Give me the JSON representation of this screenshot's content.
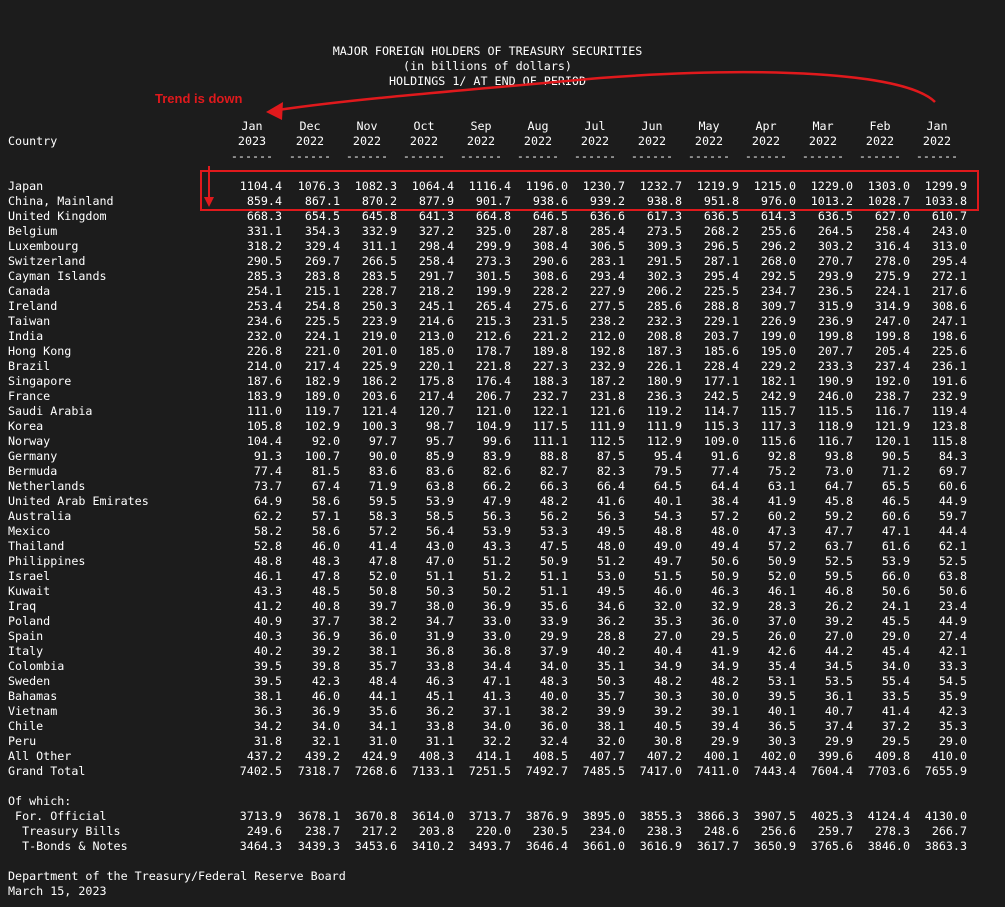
{
  "title": {
    "line1": "MAJOR FOREIGN HOLDERS OF TREASURY SECURITIES",
    "line2": "(in billions of dollars)",
    "line3": "HOLDINGS 1/ AT END OF PERIOD"
  },
  "annotation": {
    "text": "Trend is down",
    "color": "#e0191c"
  },
  "header": {
    "country_label": "Country",
    "months": [
      "Jan",
      "Dec",
      "Nov",
      "Oct",
      "Sep",
      "Aug",
      "Jul",
      "Jun",
      "May",
      "Apr",
      "Mar",
      "Feb",
      "Jan"
    ],
    "years": [
      "2023",
      "2022",
      "2022",
      "2022",
      "2022",
      "2022",
      "2022",
      "2022",
      "2022",
      "2022",
      "2022",
      "2022",
      "2022"
    ],
    "separator": "------"
  },
  "rows": [
    {
      "country": "Japan",
      "values": [
        "1104.4",
        "1076.3",
        "1082.3",
        "1064.4",
        "1116.4",
        "1196.0",
        "1230.7",
        "1232.7",
        "1219.9",
        "1215.0",
        "1229.0",
        "1303.0",
        "1299.9"
      ]
    },
    {
      "country": "China, Mainland",
      "values": [
        "859.4",
        "867.1",
        "870.2",
        "877.9",
        "901.7",
        "938.6",
        "939.2",
        "938.8",
        "951.8",
        "976.0",
        "1013.2",
        "1028.7",
        "1033.8"
      ]
    },
    {
      "country": "United Kingdom",
      "values": [
        "668.3",
        "654.5",
        "645.8",
        "641.3",
        "664.8",
        "646.5",
        "636.6",
        "617.3",
        "636.5",
        "614.3",
        "636.5",
        "627.0",
        "610.7"
      ]
    },
    {
      "country": "Belgium",
      "values": [
        "331.1",
        "354.3",
        "332.9",
        "327.2",
        "325.0",
        "287.8",
        "285.4",
        "273.5",
        "268.2",
        "255.6",
        "264.5",
        "258.4",
        "243.0"
      ]
    },
    {
      "country": "Luxembourg",
      "values": [
        "318.2",
        "329.4",
        "311.1",
        "298.4",
        "299.9",
        "308.4",
        "306.5",
        "309.3",
        "296.5",
        "296.2",
        "303.2",
        "316.4",
        "313.0"
      ]
    },
    {
      "country": "Switzerland",
      "values": [
        "290.5",
        "269.7",
        "266.5",
        "258.4",
        "273.3",
        "290.6",
        "283.1",
        "291.5",
        "287.1",
        "268.0",
        "270.7",
        "278.0",
        "295.4"
      ]
    },
    {
      "country": "Cayman Islands",
      "values": [
        "285.3",
        "283.8",
        "283.5",
        "291.7",
        "301.5",
        "308.6",
        "293.4",
        "302.3",
        "295.4",
        "292.5",
        "293.9",
        "275.9",
        "272.1"
      ]
    },
    {
      "country": "Canada",
      "values": [
        "254.1",
        "215.1",
        "228.7",
        "218.2",
        "199.9",
        "228.2",
        "227.9",
        "206.2",
        "225.5",
        "234.7",
        "236.5",
        "224.1",
        "217.6"
      ]
    },
    {
      "country": "Ireland",
      "values": [
        "253.4",
        "254.8",
        "250.3",
        "245.1",
        "265.4",
        "275.6",
        "277.5",
        "285.6",
        "288.8",
        "309.7",
        "315.9",
        "314.9",
        "308.6"
      ]
    },
    {
      "country": "Taiwan",
      "values": [
        "234.6",
        "225.5",
        "223.9",
        "214.6",
        "215.3",
        "231.5",
        "238.2",
        "232.3",
        "229.1",
        "226.9",
        "236.9",
        "247.0",
        "247.1"
      ]
    },
    {
      "country": "India",
      "values": [
        "232.0",
        "224.1",
        "219.0",
        "213.0",
        "212.6",
        "221.2",
        "212.0",
        "208.8",
        "203.7",
        "199.0",
        "199.8",
        "199.8",
        "198.6"
      ]
    },
    {
      "country": "Hong Kong",
      "values": [
        "226.8",
        "221.0",
        "201.0",
        "185.0",
        "178.7",
        "189.8",
        "192.8",
        "187.3",
        "185.6",
        "195.0",
        "207.7",
        "205.4",
        "225.6"
      ]
    },
    {
      "country": "Brazil",
      "values": [
        "214.0",
        "217.4",
        "225.9",
        "220.1",
        "221.8",
        "227.3",
        "232.9",
        "226.1",
        "228.4",
        "229.2",
        "233.3",
        "237.4",
        "236.1"
      ]
    },
    {
      "country": "Singapore",
      "values": [
        "187.6",
        "182.9",
        "186.2",
        "175.8",
        "176.4",
        "188.3",
        "187.2",
        "180.9",
        "177.1",
        "182.1",
        "190.9",
        "192.0",
        "191.6"
      ]
    },
    {
      "country": "France",
      "values": [
        "183.9",
        "189.0",
        "203.6",
        "217.4",
        "206.7",
        "232.7",
        "231.8",
        "236.3",
        "242.5",
        "242.9",
        "246.0",
        "238.7",
        "232.9"
      ]
    },
    {
      "country": "Saudi Arabia",
      "values": [
        "111.0",
        "119.7",
        "121.4",
        "120.7",
        "121.0",
        "122.1",
        "121.6",
        "119.2",
        "114.7",
        "115.7",
        "115.5",
        "116.7",
        "119.4"
      ]
    },
    {
      "country": "Korea",
      "values": [
        "105.8",
        "102.9",
        "100.3",
        "98.7",
        "104.9",
        "117.5",
        "111.9",
        "111.9",
        "115.3",
        "117.3",
        "118.9",
        "121.9",
        "123.8"
      ]
    },
    {
      "country": "Norway",
      "values": [
        "104.4",
        "92.0",
        "97.7",
        "95.7",
        "99.6",
        "111.1",
        "112.5",
        "112.9",
        "109.0",
        "115.6",
        "116.7",
        "120.1",
        "115.8"
      ]
    },
    {
      "country": "Germany",
      "values": [
        "91.3",
        "100.7",
        "90.0",
        "85.9",
        "83.9",
        "88.8",
        "87.5",
        "95.4",
        "91.6",
        "92.8",
        "93.8",
        "90.5",
        "84.3"
      ]
    },
    {
      "country": "Bermuda",
      "values": [
        "77.4",
        "81.5",
        "83.6",
        "83.6",
        "82.6",
        "82.7",
        "82.3",
        "79.5",
        "77.4",
        "75.2",
        "73.0",
        "71.2",
        "69.7"
      ]
    },
    {
      "country": "Netherlands",
      "values": [
        "73.7",
        "67.4",
        "71.9",
        "63.8",
        "66.2",
        "66.3",
        "66.4",
        "64.5",
        "64.4",
        "63.1",
        "64.7",
        "65.5",
        "60.6"
      ]
    },
    {
      "country": "United Arab Emirates",
      "values": [
        "64.9",
        "58.6",
        "59.5",
        "53.9",
        "47.9",
        "48.2",
        "41.6",
        "40.1",
        "38.4",
        "41.9",
        "45.8",
        "46.5",
        "44.9"
      ]
    },
    {
      "country": "Australia",
      "values": [
        "62.2",
        "57.1",
        "58.3",
        "58.5",
        "56.3",
        "56.2",
        "56.3",
        "54.3",
        "57.2",
        "60.2",
        "59.2",
        "60.6",
        "59.7"
      ]
    },
    {
      "country": "Mexico",
      "values": [
        "58.2",
        "58.6",
        "57.2",
        "56.4",
        "53.9",
        "53.3",
        "49.5",
        "48.8",
        "48.0",
        "47.3",
        "47.7",
        "47.1",
        "44.4"
      ]
    },
    {
      "country": "Thailand",
      "values": [
        "52.8",
        "46.0",
        "41.4",
        "43.0",
        "43.3",
        "47.5",
        "48.0",
        "49.0",
        "49.4",
        "57.2",
        "63.7",
        "61.6",
        "62.1"
      ]
    },
    {
      "country": "Philippines",
      "values": [
        "48.8",
        "48.3",
        "47.8",
        "47.0",
        "51.2",
        "50.9",
        "51.2",
        "49.7",
        "50.6",
        "50.9",
        "52.5",
        "53.9",
        "52.5"
      ]
    },
    {
      "country": "Israel",
      "values": [
        "46.1",
        "47.8",
        "52.0",
        "51.1",
        "51.2",
        "51.1",
        "53.0",
        "51.5",
        "50.9",
        "52.0",
        "59.5",
        "66.0",
        "63.8"
      ]
    },
    {
      "country": "Kuwait",
      "values": [
        "43.3",
        "48.5",
        "50.8",
        "50.3",
        "50.2",
        "51.1",
        "49.5",
        "46.0",
        "46.3",
        "46.1",
        "46.8",
        "50.6",
        "50.6"
      ]
    },
    {
      "country": "Iraq",
      "values": [
        "41.2",
        "40.8",
        "39.7",
        "38.0",
        "36.9",
        "35.6",
        "34.6",
        "32.0",
        "32.9",
        "28.3",
        "26.2",
        "24.1",
        "23.4"
      ]
    },
    {
      "country": "Poland",
      "values": [
        "40.9",
        "37.7",
        "38.2",
        "34.7",
        "33.0",
        "33.9",
        "36.2",
        "35.3",
        "36.0",
        "37.0",
        "39.2",
        "45.5",
        "44.9"
      ]
    },
    {
      "country": "Spain",
      "values": [
        "40.3",
        "36.9",
        "36.0",
        "31.9",
        "33.0",
        "29.9",
        "28.8",
        "27.0",
        "29.5",
        "26.0",
        "27.0",
        "29.0",
        "27.4"
      ]
    },
    {
      "country": "Italy",
      "values": [
        "40.2",
        "39.2",
        "38.1",
        "36.8",
        "36.8",
        "37.9",
        "40.2",
        "40.4",
        "41.9",
        "42.6",
        "44.2",
        "45.4",
        "42.1"
      ]
    },
    {
      "country": "Colombia",
      "values": [
        "39.5",
        "39.8",
        "35.7",
        "33.8",
        "34.4",
        "34.0",
        "35.1",
        "34.9",
        "34.9",
        "35.4",
        "34.5",
        "34.0",
        "33.3"
      ]
    },
    {
      "country": "Sweden",
      "values": [
        "39.5",
        "42.3",
        "48.4",
        "46.3",
        "47.1",
        "48.3",
        "50.3",
        "48.2",
        "48.2",
        "53.1",
        "53.5",
        "55.4",
        "54.5"
      ]
    },
    {
      "country": "Bahamas",
      "values": [
        "38.1",
        "46.0",
        "44.1",
        "45.1",
        "41.3",
        "40.0",
        "35.7",
        "30.3",
        "30.0",
        "39.5",
        "36.1",
        "33.5",
        "35.9"
      ]
    },
    {
      "country": "Vietnam",
      "values": [
        "36.3",
        "36.9",
        "35.6",
        "36.2",
        "37.1",
        "38.2",
        "39.9",
        "39.2",
        "39.1",
        "40.1",
        "40.7",
        "41.4",
        "42.3"
      ]
    },
    {
      "country": "Chile",
      "values": [
        "34.2",
        "34.0",
        "34.1",
        "33.8",
        "34.0",
        "36.0",
        "38.1",
        "40.5",
        "39.4",
        "36.5",
        "37.4",
        "37.2",
        "35.3"
      ]
    },
    {
      "country": "Peru",
      "values": [
        "31.8",
        "32.1",
        "31.0",
        "31.1",
        "32.2",
        "32.4",
        "32.0",
        "30.8",
        "29.9",
        "30.3",
        "29.9",
        "29.5",
        "29.0"
      ]
    },
    {
      "country": "All Other",
      "values": [
        "437.2",
        "439.2",
        "424.9",
        "408.3",
        "414.1",
        "408.5",
        "407.7",
        "407.2",
        "400.1",
        "402.0",
        "399.6",
        "409.8",
        "410.0"
      ]
    },
    {
      "country": "Grand Total",
      "values": [
        "7402.5",
        "7318.7",
        "7268.6",
        "7133.1",
        "7251.5",
        "7492.7",
        "7485.5",
        "7417.0",
        "7411.0",
        "7443.4",
        "7604.4",
        "7703.6",
        "7655.9"
      ]
    }
  ],
  "of_which": {
    "label": "Of which:",
    "rows": [
      {
        "country": " For. Official",
        "values": [
          "3713.9",
          "3678.1",
          "3670.8",
          "3614.0",
          "3713.7",
          "3876.9",
          "3895.0",
          "3855.3",
          "3866.3",
          "3907.5",
          "4025.3",
          "4124.4",
          "4130.0"
        ]
      },
      {
        "country": "  Treasury Bills",
        "values": [
          "249.6",
          "238.7",
          "217.2",
          "203.8",
          "220.0",
          "230.5",
          "234.0",
          "238.3",
          "248.6",
          "256.6",
          "259.7",
          "278.3",
          "266.7"
        ]
      },
      {
        "country": "  T-Bonds & Notes",
        "values": [
          "3464.3",
          "3439.3",
          "3453.6",
          "3410.2",
          "3493.7",
          "3646.4",
          "3661.0",
          "3616.9",
          "3617.7",
          "3650.9",
          "3765.6",
          "3846.0",
          "3863.3"
        ]
      }
    ]
  },
  "footer": {
    "line1": "Department of the Treasury/Federal Reserve Board",
    "line2": "March 15, 2023"
  }
}
